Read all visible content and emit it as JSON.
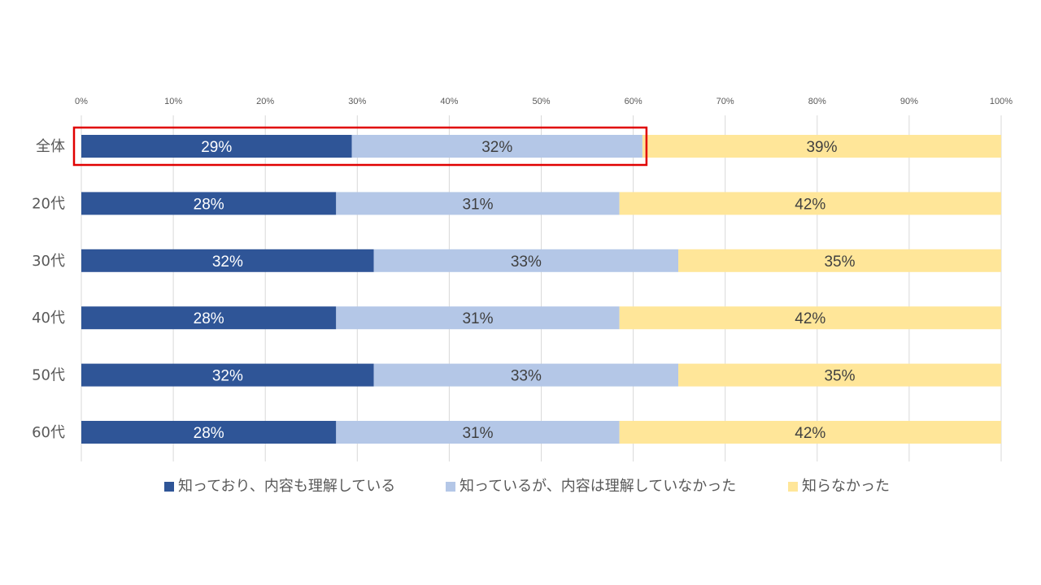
{
  "chart_data": {
    "type": "bar",
    "orientation": "horizontal",
    "stacked": true,
    "percent_stacked": true,
    "categories": [
      "全体",
      "20代",
      "30代",
      "40代",
      "50代",
      "60代"
    ],
    "series": [
      {
        "name": "知っており、内容も理解している",
        "color": "#2F5597",
        "label_color": "#ffffff",
        "values": [
          29,
          28,
          32,
          28,
          32,
          28
        ]
      },
      {
        "name": "知っているが、内容は理解していなかった",
        "color": "#B4C7E7",
        "label_color": "#404040",
        "values": [
          32,
          31,
          33,
          31,
          33,
          31
        ]
      },
      {
        "name": "知らなかった",
        "color": "#FFE699",
        "label_color": "#404040",
        "values": [
          39,
          42,
          35,
          42,
          35,
          42
        ]
      }
    ],
    "bar_extents": [
      [
        29.4,
        31.6,
        39.0
      ],
      [
        27.7,
        30.8,
        41.5
      ],
      [
        31.8,
        33.1,
        35.1
      ],
      [
        27.7,
        30.8,
        41.5
      ],
      [
        31.8,
        33.1,
        35.1
      ],
      [
        27.7,
        30.8,
        41.5
      ]
    ],
    "x_ticks": [
      "0%",
      "10%",
      "20%",
      "30%",
      "40%",
      "50%",
      "60%",
      "70%",
      "80%",
      "90%",
      "100%"
    ],
    "xlim": [
      0,
      100
    ],
    "x_axis_position": "top",
    "grid": true,
    "grid_color": "#D9D9D9",
    "legend_position": "bottom",
    "highlight": {
      "category": "全体",
      "series_range": [
        0,
        1
      ],
      "color": "#E00000"
    }
  }
}
